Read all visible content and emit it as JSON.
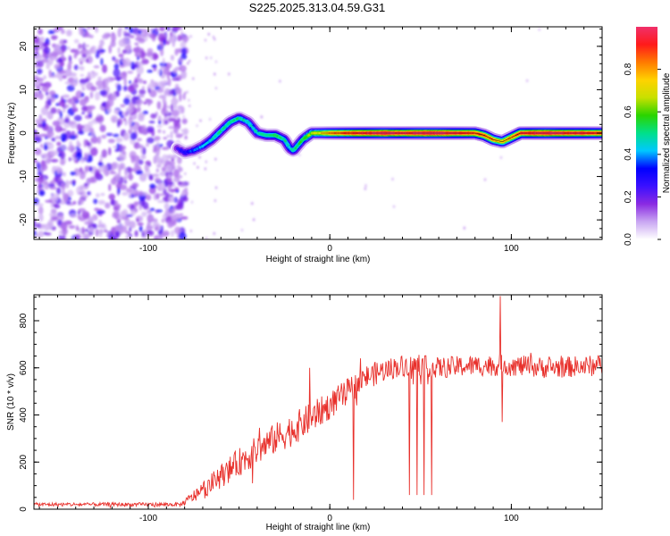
{
  "title": "S225.2025.313.04.59.G31",
  "chart_data": [
    {
      "type": "heatmap",
      "id": "spectrogram",
      "xlabel": "Height of straight line (km)",
      "ylabel": "Frequency (Hz)",
      "xlim": [
        -163,
        150
      ],
      "ylim": [
        -24.5,
        24.5
      ],
      "xticks": [
        -100,
        0,
        100
      ],
      "yticks": [
        -20,
        -10,
        0,
        10,
        20
      ],
      "colorbar": {
        "label": "Normalized spectral amplitude",
        "range": [
          0,
          1
        ],
        "ticks": [
          0.0,
          0.2,
          0.4,
          0.6,
          0.8
        ],
        "tick_labels": [
          "0.0",
          "0.2",
          "0.4",
          "0.6",
          "0.8"
        ],
        "colormap": [
          "#ffffff",
          "#c9a6f2",
          "#8a2be2",
          "#3b10ff",
          "#0000ff",
          "#00c8ff",
          "#00e08a",
          "#2bd400",
          "#c8e000",
          "#ffd200",
          "#ff7a00",
          "#ff1a1a",
          "#f0306a"
        ]
      },
      "noise_region": {
        "x": [
          -163,
          -82
        ],
        "amplitude": 0.2
      },
      "signal_track": {
        "x": [
          -84,
          -80,
          -75,
          -70,
          -65,
          -60,
          -55,
          -50,
          -45,
          -40,
          -35,
          -30,
          -25,
          -22,
          -20,
          -15,
          -10,
          -5,
          0,
          10,
          20,
          30,
          40,
          50,
          60,
          70,
          80,
          85,
          90,
          95,
          100,
          105,
          110,
          120,
          130,
          140,
          150
        ],
        "freq": [
          -3.5,
          -4.5,
          -4,
          -3,
          -1.5,
          0.5,
          2.5,
          3.5,
          2.5,
          0,
          -0.5,
          -0.5,
          -1.5,
          -3.5,
          -4,
          -1.5,
          0,
          0,
          0,
          0,
          0,
          0,
          0,
          0,
          0,
          0,
          0,
          -0.5,
          -1.5,
          -2,
          -1,
          0,
          0,
          0,
          0,
          0,
          0
        ],
        "amplitude": [
          0.25,
          0.3,
          0.35,
          0.4,
          0.45,
          0.48,
          0.5,
          0.5,
          0.45,
          0.45,
          0.5,
          0.55,
          0.5,
          0.45,
          0.5,
          0.55,
          0.65,
          0.7,
          0.8,
          0.9,
          0.95,
          1.0,
          0.95,
          1.0,
          1.0,
          0.95,
          0.9,
          0.85,
          0.8,
          0.75,
          0.8,
          0.9,
          0.95,
          1.0,
          0.95,
          0.95,
          0.9
        ]
      }
    },
    {
      "type": "line",
      "id": "snr",
      "xlabel": "Height of straight line (km)",
      "ylabel": "SNR (10 * v/v)",
      "xlim": [
        -163,
        150
      ],
      "ylim": [
        0,
        910
      ],
      "xticks": [
        -100,
        0,
        100
      ],
      "yticks": [
        0,
        200,
        400,
        600,
        800
      ],
      "color": "#e8302b",
      "series": {
        "name": "SNR",
        "baseline_x": [
          -163,
          -82,
          -70,
          -60,
          -50,
          -40,
          -30,
          -20,
          -10,
          0,
          10,
          20,
          30,
          40,
          50,
          60,
          80,
          100,
          120,
          150
        ],
        "baseline_y": [
          20,
          20,
          80,
          140,
          200,
          250,
          300,
          340,
          390,
          440,
          500,
          560,
          590,
          610,
          610,
          600,
          610,
          610,
          600,
          610
        ],
        "noise": [
          [
            -163,
            8
          ],
          [
            -82,
            8
          ],
          [
            -70,
            40
          ],
          [
            -50,
            60
          ],
          [
            -20,
            70
          ],
          [
            0,
            60
          ],
          [
            40,
            45
          ],
          [
            150,
            45
          ]
        ],
        "spikes": [
          {
            "x": -11,
            "y": 600
          },
          {
            "x": 13,
            "y": 40
          },
          {
            "x": 44,
            "y": 60
          },
          {
            "x": 46,
            "y": 530
          },
          {
            "x": 48,
            "y": 60
          },
          {
            "x": 50,
            "y": 530
          },
          {
            "x": 52,
            "y": 60
          },
          {
            "x": 54,
            "y": 530
          },
          {
            "x": 56,
            "y": 60
          },
          {
            "x": 94,
            "y": 905
          },
          {
            "x": 95,
            "y": 370
          }
        ]
      }
    }
  ]
}
